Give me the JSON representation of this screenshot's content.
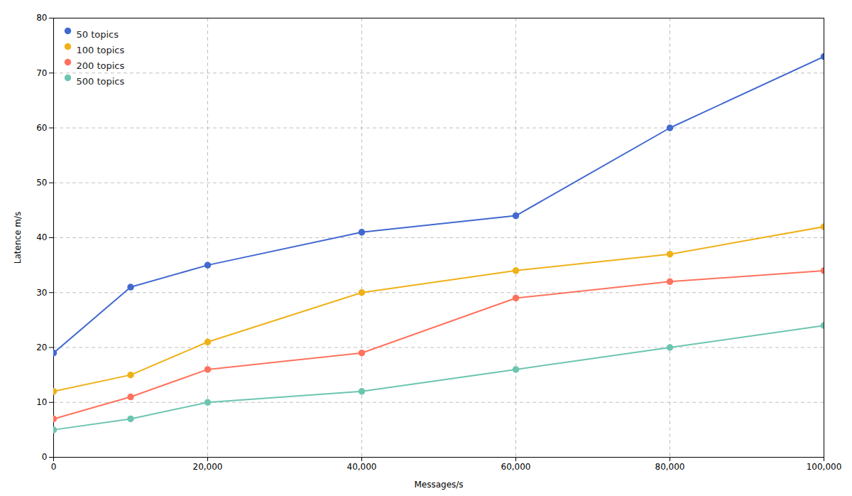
{
  "chart_data": {
    "type": "line",
    "x_label": "Messages/s",
    "y_label": "Latence m/s",
    "x": [
      0,
      10000,
      20000,
      40000,
      60000,
      80000,
      100000
    ],
    "series": [
      {
        "name": "50 topics",
        "values": [
          19,
          31,
          35,
          41,
          44,
          60,
          73
        ]
      },
      {
        "name": "100 topics",
        "values": [
          12,
          15,
          21,
          30,
          34,
          37,
          42
        ]
      },
      {
        "name": "200 topics",
        "values": [
          7,
          11,
          16,
          19,
          29,
          32,
          34
        ]
      },
      {
        "name": "500 topics",
        "values": [
          5,
          7,
          10,
          12,
          16,
          20,
          24
        ]
      }
    ],
    "xlim": [
      0,
      100000
    ],
    "ylim": [
      0,
      80
    ],
    "xticks": [
      0,
      {
        "value": 20000,
        "label": "20,000"
      },
      {
        "value": 40000,
        "label": "40,000"
      },
      {
        "value": 60000,
        "label": "60,000"
      },
      {
        "value": 80000,
        "label": "80,000"
      },
      {
        "value": 100000,
        "label": "100,000"
      }
    ],
    "yticks": [
      0,
      10,
      20,
      30,
      40,
      50,
      60,
      70,
      80
    ],
    "grid": true,
    "legend": "upper left",
    "marker": "circle"
  }
}
